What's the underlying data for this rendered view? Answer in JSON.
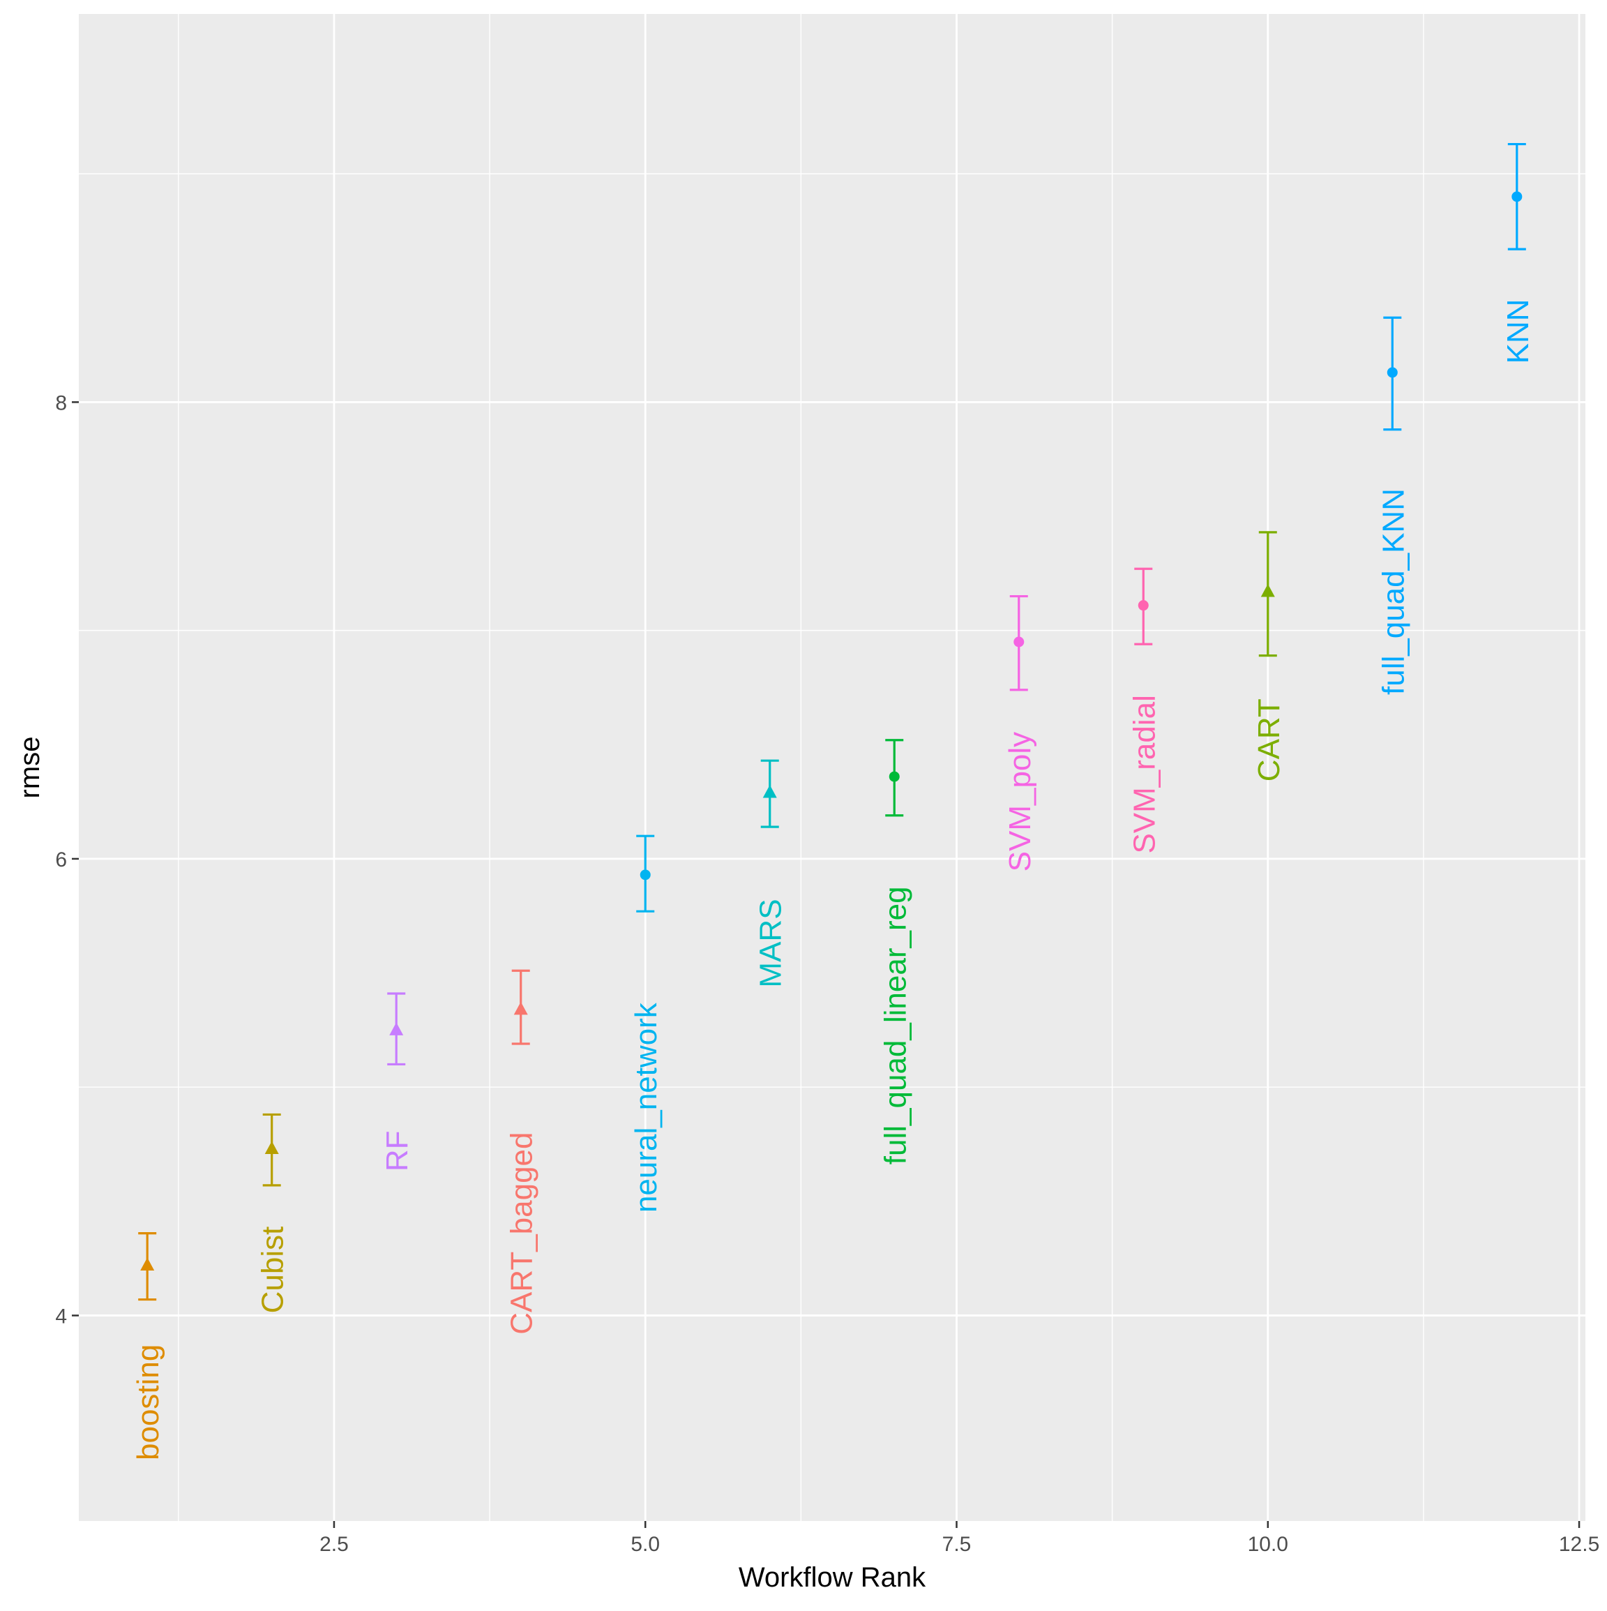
{
  "chart_data": {
    "type": "scatter",
    "xlabel": "Workflow Rank",
    "ylabel": "rmse",
    "xlim": [
      0.45,
      12.55
    ],
    "ylim": [
      3.1,
      9.7
    ],
    "x_ticks": [
      2.5,
      5.0,
      7.5,
      10.0,
      12.5
    ],
    "x_tick_labels": [
      "2.5",
      "5.0",
      "7.5",
      "10.0",
      "12.5"
    ],
    "y_ticks": [
      4,
      6,
      8
    ],
    "y_tick_labels": [
      "4",
      "6",
      "8"
    ],
    "grid": true,
    "legend": "none",
    "points": [
      {
        "rank": 1,
        "label": "boosting",
        "rmse": 4.22,
        "lower": 4.07,
        "upper": 4.36,
        "shape": "triangle",
        "color": "#DE8C00",
        "label_y": 3.62
      },
      {
        "rank": 2,
        "label": "Cubist",
        "rmse": 4.73,
        "lower": 4.57,
        "upper": 4.88,
        "shape": "triangle",
        "color": "#B79F00",
        "label_y": 4.2
      },
      {
        "rank": 3,
        "label": "RF",
        "rmse": 5.25,
        "lower": 5.1,
        "upper": 5.41,
        "shape": "triangle",
        "color": "#C77CFF",
        "label_y": 4.72
      },
      {
        "rank": 4,
        "label": "CART_bagged",
        "rmse": 5.34,
        "lower": 5.19,
        "upper": 5.51,
        "shape": "triangle",
        "color": "#F8766D",
        "label_y": 4.36
      },
      {
        "rank": 5,
        "label": "neural_network",
        "rmse": 5.93,
        "lower": 5.77,
        "upper": 6.1,
        "shape": "circle",
        "color": "#00B4F0",
        "label_y": 4.91
      },
      {
        "rank": 6,
        "label": "MARS",
        "rmse": 6.29,
        "lower": 6.14,
        "upper": 6.43,
        "shape": "triangle",
        "color": "#00BFC4",
        "label_y": 5.63
      },
      {
        "rank": 7,
        "label": "full_quad_linear_reg",
        "rmse": 6.36,
        "lower": 6.19,
        "upper": 6.52,
        "shape": "circle",
        "color": "#00BA38",
        "label_y": 5.27
      },
      {
        "rank": 8,
        "label": "SVM_poly",
        "rmse": 6.95,
        "lower": 6.74,
        "upper": 7.15,
        "shape": "circle",
        "color": "#F564E3",
        "label_y": 6.25
      },
      {
        "rank": 9,
        "label": "SVM_radial",
        "rmse": 7.11,
        "lower": 6.94,
        "upper": 7.27,
        "shape": "circle",
        "color": "#FF64B0",
        "label_y": 6.37
      },
      {
        "rank": 10,
        "label": "CART",
        "rmse": 7.17,
        "lower": 6.89,
        "upper": 7.43,
        "shape": "triangle",
        "color": "#7CAE00",
        "label_y": 6.52
      },
      {
        "rank": 11,
        "label": "full_quad_KNN",
        "rmse": 8.13,
        "lower": 7.88,
        "upper": 8.37,
        "shape": "circle",
        "color": "#00A9FF",
        "label_y": 7.17
      },
      {
        "rank": 12,
        "label": "KNN",
        "rmse": 8.9,
        "lower": 8.67,
        "upper": 9.13,
        "shape": "circle",
        "color": "#00A9FF",
        "label_y": 8.31
      }
    ],
    "colors": {
      "panel_bg": "#EBEBEB",
      "grid_major": "#FFFFFF",
      "grid_minor": "#FFFFFF",
      "tick_text": "#4D4D4D",
      "axis_title": "#000000"
    }
  }
}
